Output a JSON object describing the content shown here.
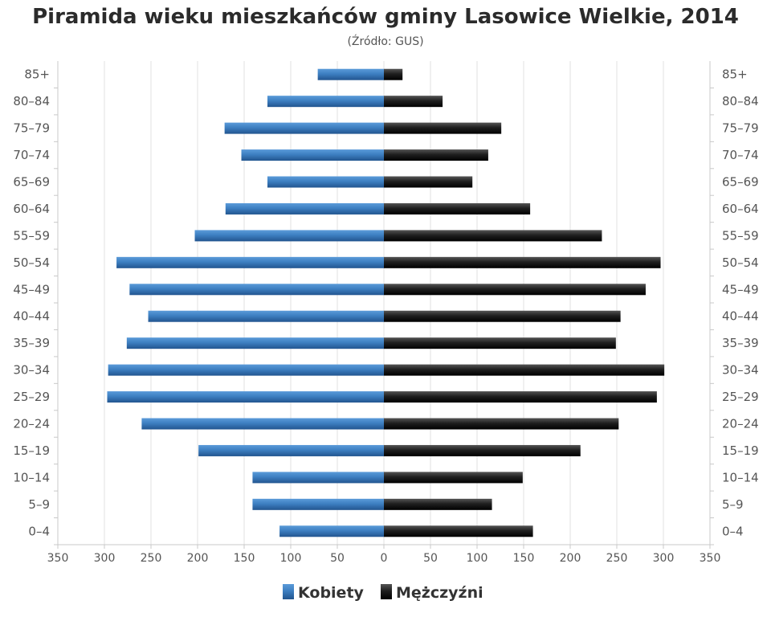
{
  "chart_data": {
    "type": "bar",
    "title": "Piramida wieku mieszkańców gminy Lasowice Wielkie, 2014",
    "subtitle": "(Źródło: GUS)",
    "categories": [
      "0-4",
      "5-9",
      "10-14",
      "15-19",
      "20-24",
      "25-29",
      "30-34",
      "35-39",
      "40-44",
      "45-49",
      "50-54",
      "55-59",
      "60-64",
      "65-69",
      "70-74",
      "75-79",
      "80-84",
      "85+"
    ],
    "category_labels": [
      "0–4",
      "5–9",
      "10–14",
      "15–19",
      "20–24",
      "25–29",
      "30–34",
      "35–39",
      "40–44",
      "45–49",
      "50–54",
      "55–59",
      "60–64",
      "65–69",
      "70–74",
      "75–79",
      "80–84",
      "85+"
    ],
    "series": [
      {
        "name": "Kobiety",
        "values": [
          112,
          141,
          141,
          199,
          260,
          297,
          296,
          276,
          253,
          273,
          287,
          203,
          170,
          125,
          153,
          171,
          125,
          71
        ],
        "color": "#3d7fc1"
      },
      {
        "name": "Mężczyźni",
        "values": [
          160,
          116,
          149,
          211,
          252,
          293,
          301,
          249,
          254,
          281,
          297,
          234,
          157,
          95,
          112,
          126,
          63,
          20
        ],
        "color": "#1a1a1a"
      }
    ],
    "xlim": [
      -350,
      350
    ],
    "x_ticks": [
      "350",
      "300",
      "250",
      "200",
      "150",
      "100",
      "50",
      "0",
      "50",
      "100",
      "150",
      "200",
      "250",
      "300",
      "350"
    ],
    "grid": true,
    "legend_position": "bottom"
  }
}
